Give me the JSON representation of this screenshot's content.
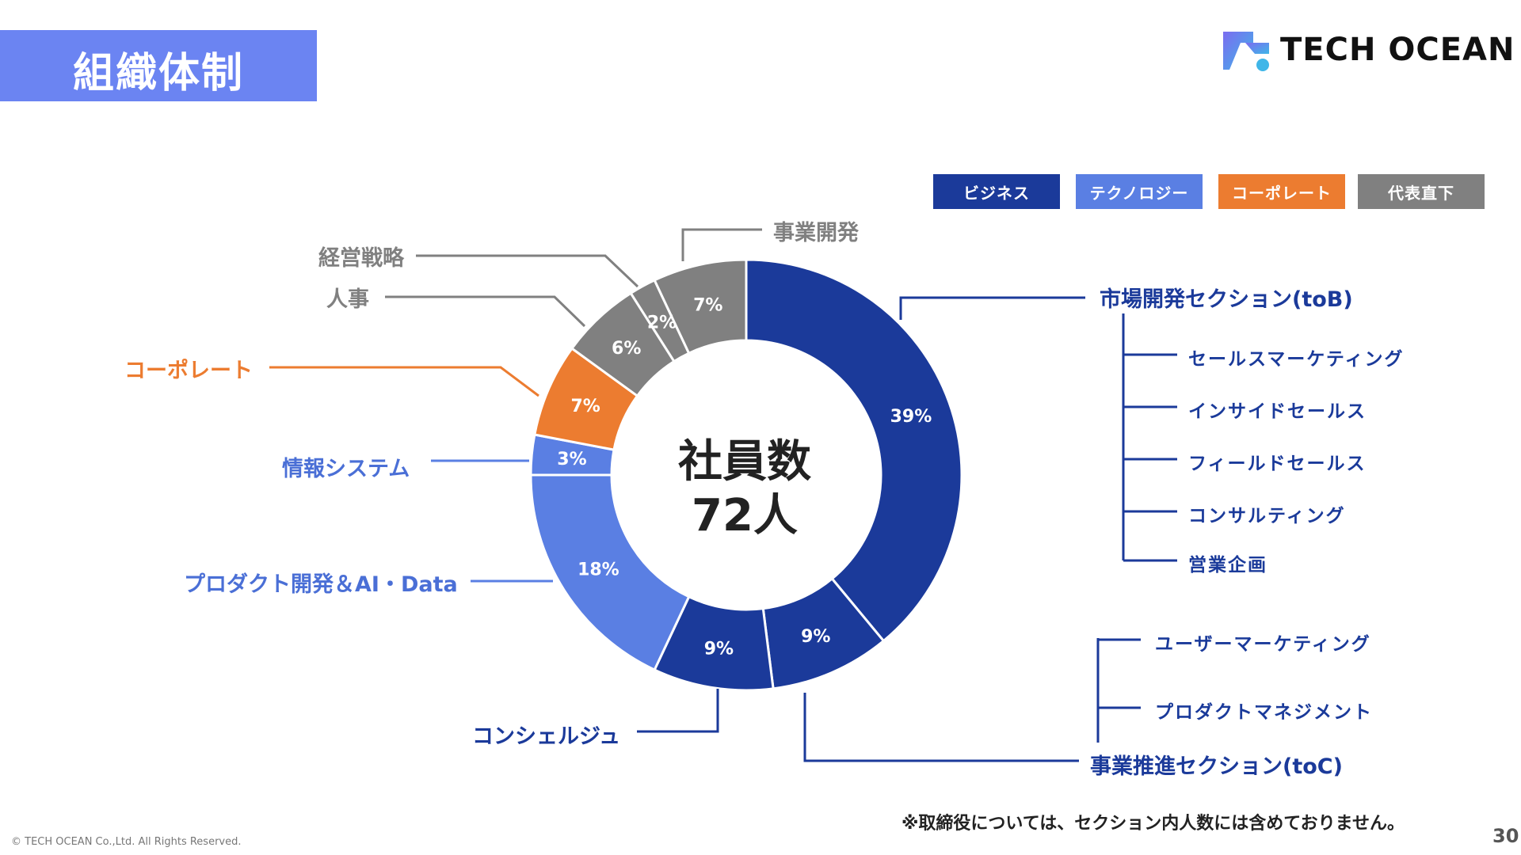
{
  "header": {
    "title": "組織体制",
    "brand": "TECH OCEAN"
  },
  "legend": [
    {
      "label": "ビジネス",
      "color": "#1b3a9a"
    },
    {
      "label": "テクノロジー",
      "color": "#5a7fe3"
    },
    {
      "label": "コーポレート",
      "color": "#ec7c30"
    },
    {
      "label": "代表直下",
      "color": "#808080"
    }
  ],
  "center": {
    "title": "社員数",
    "count": "72人"
  },
  "chart_data": {
    "type": "pie",
    "title": "社員数 72人",
    "slices": [
      {
        "label": "市場開発セクション(toB)",
        "value": 39,
        "pct_label": "39%",
        "color": "#1b3a9a"
      },
      {
        "label": "事業推進セクション(toC)",
        "value": 9,
        "pct_label": "9%",
        "color": "#1b3a9a"
      },
      {
        "label": "コンシェルジュ",
        "value": 9,
        "pct_label": "9%",
        "color": "#1b3a9a"
      },
      {
        "label": "プロダクト開発＆AI・Data",
        "value": 18,
        "pct_label": "18%",
        "color": "#5a7fe3"
      },
      {
        "label": "情報システム",
        "value": 3,
        "pct_label": "3%",
        "color": "#5a7fe3"
      },
      {
        "label": "コーポレート",
        "value": 7,
        "pct_label": "7%",
        "color": "#ec7c30"
      },
      {
        "label": "人事",
        "value": 6,
        "pct_label": "6%",
        "color": "#808080"
      },
      {
        "label": "経営戦略",
        "value": 2,
        "pct_label": "2%",
        "color": "#808080"
      },
      {
        "label": "事業開発",
        "value": 7,
        "pct_label": "7%",
        "color": "#808080"
      }
    ]
  },
  "labels": {
    "jigyo_kaihatsu": "事業開発",
    "keiei_senryaku": "経営戦略",
    "jinji": "人事",
    "corporate": "コーポレート",
    "joho_system": "情報システム",
    "product": "プロダクト開発＆AI・Data",
    "concierge": "コンシェルジュ",
    "toB": "市場開発セクション(toB)",
    "toC": "事業推進セクション(toC)"
  },
  "toB_sub": [
    "セールスマーケティング",
    "インサイドセールス",
    "フィールドセールス",
    "コンサルティング",
    "営業企画"
  ],
  "toC_sub": [
    "ユーザーマーケティング",
    "プロダクトマネジメント"
  ],
  "footer": {
    "note": "※取締役については、セクション内人数には含めておりません。",
    "copyright": "© TECH OCEAN Co.,Ltd. All Rights Reserved.",
    "page": "30"
  }
}
